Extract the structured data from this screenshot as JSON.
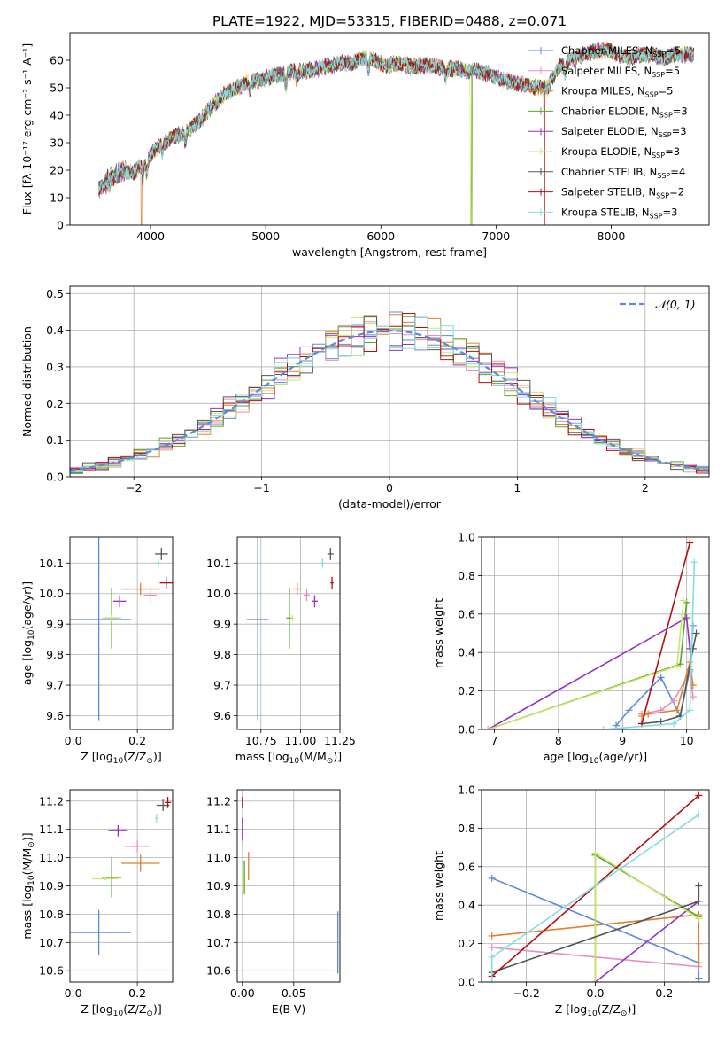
{
  "title": "PLATE=1922, MJD=53315, FIBERID=0488, z=0.071",
  "colors": {
    "chabrier_miles": "#5b8bd9",
    "salpeter_miles": "#e68fbf",
    "kroupa_miles": "#e0822c",
    "chabrier_elodie": "#58a52f",
    "salpeter_elodie": "#9b30c2",
    "kroupa_elodie": "#cde46e",
    "chabrier_stelib": "#555555",
    "salpeter_stelib": "#b21010",
    "kroupa_stelib": "#80dde0",
    "normal_curve": "#5b8bd9",
    "grid": "#b0b0b0"
  },
  "chart_data": [
    {
      "id": "spectrum",
      "type": "line",
      "xlabel": "wavelength [Angstrom, rest frame]",
      "ylabel": "Flux [fλ 10⁻¹⁷ erg cm⁻² s⁻¹ A⁻¹]",
      "xlim": [
        3300,
        8850
      ],
      "ylim": [
        0,
        70
      ],
      "xticks": [
        4000,
        5000,
        6000,
        7000,
        8000
      ],
      "yticks": [
        0,
        10,
        20,
        30,
        40,
        50,
        60
      ],
      "grid": false,
      "legend_position": "top-right",
      "continuum": [
        [
          3550,
          13
        ],
        [
          3650,
          17
        ],
        [
          3750,
          20
        ],
        [
          3850,
          19
        ],
        [
          3950,
          23
        ],
        [
          4050,
          28
        ],
        [
          4150,
          31
        ],
        [
          4250,
          33
        ],
        [
          4350,
          35
        ],
        [
          4450,
          39
        ],
        [
          4550,
          44
        ],
        [
          4650,
          48
        ],
        [
          4750,
          50
        ],
        [
          4850,
          52
        ],
        [
          4950,
          53
        ],
        [
          5050,
          54
        ],
        [
          5150,
          55
        ],
        [
          5250,
          56
        ],
        [
          5350,
          56
        ],
        [
          5450,
          57
        ],
        [
          5550,
          58
        ],
        [
          5650,
          59
        ],
        [
          5750,
          59
        ],
        [
          5850,
          61
        ],
        [
          5950,
          60
        ],
        [
          6050,
          58
        ],
        [
          6150,
          59
        ],
        [
          6250,
          58
        ],
        [
          6350,
          58
        ],
        [
          6450,
          58
        ],
        [
          6550,
          57
        ],
        [
          6650,
          57
        ],
        [
          6750,
          56
        ],
        [
          6850,
          56
        ],
        [
          6950,
          55
        ],
        [
          7050,
          53
        ],
        [
          7150,
          52
        ],
        [
          7250,
          51
        ],
        [
          7350,
          50
        ],
        [
          7450,
          50
        ],
        [
          7550,
          58
        ],
        [
          7650,
          60
        ],
        [
          7750,
          62
        ],
        [
          7850,
          63
        ],
        [
          7950,
          64
        ],
        [
          8050,
          62
        ],
        [
          8150,
          61
        ],
        [
          8250,
          62
        ],
        [
          8350,
          62
        ],
        [
          8450,
          61
        ],
        [
          8550,
          62
        ],
        [
          8650,
          62
        ],
        [
          8720,
          62
        ]
      ],
      "series": [
        {
          "name": "Chabrier MILES, N_SSP=5",
          "legend": [
            "Chabrier MILES, N",
            "SSP",
            "=5"
          ],
          "color_key": "chabrier_miles",
          "drop_at": null
        },
        {
          "name": "Salpeter MILES, N_SSP=5",
          "legend": [
            "Salpeter MILES, N",
            "SSP",
            "=5"
          ],
          "color_key": "salpeter_miles",
          "drop_at": null
        },
        {
          "name": "Kroupa MILES, N_SSP=5",
          "legend": [
            "Kroupa MILES, N",
            "SSP",
            "=5"
          ],
          "color_key": "kroupa_miles",
          "drop_at": 3920
        },
        {
          "name": "Chabrier ELODIE, N_SSP=3",
          "legend": [
            "Chabrier ELODIE, N",
            "SSP",
            "=3"
          ],
          "color_key": "chabrier_elodie",
          "drop_at": 6790
        },
        {
          "name": "Salpeter ELODIE, N_SSP=3",
          "legend": [
            "Salpeter ELODIE, N",
            "SSP",
            "=3"
          ],
          "color_key": "salpeter_elodie",
          "drop_at": null
        },
        {
          "name": "Kroupa ELODIE, N_SSP=3",
          "legend": [
            "Kroupa ELODIE, N",
            "SSP",
            "=3"
          ],
          "color_key": "kroupa_elodie",
          "drop_at": 6780
        },
        {
          "name": "Chabrier STELIB, N_SSP=4",
          "legend": [
            "Chabrier STELIB, N",
            "SSP",
            "=4"
          ],
          "color_key": "chabrier_stelib",
          "drop_at": null
        },
        {
          "name": "Salpeter STELIB, N_SSP=2",
          "legend": [
            "Salpeter STELIB, N",
            "SSP",
            "=2"
          ],
          "color_key": "salpeter_stelib",
          "drop_at": 7420
        },
        {
          "name": "Kroupa STELIB, N_SSP=3",
          "legend": [
            "Kroupa STELIB, N",
            "SSP",
            "=3"
          ],
          "color_key": "kroupa_stelib",
          "drop_at": null
        }
      ]
    },
    {
      "id": "residuals",
      "type": "histogram",
      "xlabel": "(data-model)/error",
      "ylabel": "Normed distribution",
      "xlim": [
        -2.5,
        2.5
      ],
      "ylim": [
        0,
        0.52
      ],
      "xticks": [
        -2,
        -1,
        0,
        1,
        2
      ],
      "yticks": [
        0.0,
        0.1,
        0.2,
        0.3,
        0.4,
        0.5
      ],
      "grid": true,
      "bin_width": 0.1,
      "legend": "𝒩(0, 1)",
      "legend_position": "top-right"
    },
    {
      "id": "age_vs_Z",
      "type": "errorbar",
      "xlabel": [
        "Z [log",
        "10",
        "(Z/Z",
        "⊙",
        ")]"
      ],
      "ylabel": [
        "age  [log",
        "10",
        "(age/yr)]"
      ],
      "xlim": [
        -0.01,
        0.31
      ],
      "ylim": [
        9.555,
        10.185
      ],
      "xticks": [
        0.0,
        0.2
      ],
      "yticks": [
        9.6,
        9.7,
        9.8,
        9.9,
        10.0,
        10.1
      ],
      "points": [
        {
          "color_key": "chabrier_miles",
          "x": 0.08,
          "y": 9.915,
          "xerr": 0.1,
          "yerr": 0.33
        },
        {
          "color_key": "kroupa_miles",
          "x": 0.21,
          "y": 10.015,
          "xerr": 0.06,
          "yerr": 0.02
        },
        {
          "color_key": "salpeter_miles",
          "x": 0.24,
          "y": 9.995,
          "xerr": 0.02,
          "yerr": 0.025
        },
        {
          "color_key": "chabrier_elodie",
          "x": 0.12,
          "y": 9.92,
          "xerr": 0.02,
          "yerr": 0.1
        },
        {
          "color_key": "salpeter_elodie",
          "x": 0.145,
          "y": 9.975,
          "xerr": 0.02,
          "yerr": 0.02
        },
        {
          "color_key": "kroupa_elodie",
          "x": 0.12,
          "y": 9.92,
          "xerr": 0.03,
          "yerr": 0.01
        },
        {
          "color_key": "chabrier_stelib",
          "x": 0.275,
          "y": 10.13,
          "xerr": 0.02,
          "yerr": 0.02
        },
        {
          "color_key": "salpeter_stelib",
          "x": 0.29,
          "y": 10.035,
          "xerr": 0.02,
          "yerr": 0.02
        },
        {
          "color_key": "kroupa_stelib",
          "x": 0.265,
          "y": 10.1,
          "xerr": 0.01,
          "yerr": 0.015
        }
      ]
    },
    {
      "id": "age_vs_mass",
      "type": "errorbar",
      "xlabel": [
        "mass [log",
        "10",
        "(M/M",
        "⊙",
        ")]"
      ],
      "xlim": [
        10.6,
        11.25
      ],
      "ylim": [
        9.555,
        10.185
      ],
      "xticks": [
        10.75,
        11.0,
        11.25
      ],
      "yticks": [
        9.6,
        9.7,
        9.8,
        9.9,
        10.0,
        10.1
      ],
      "points": [
        {
          "color_key": "chabrier_miles",
          "x": 10.73,
          "y": 9.915,
          "xerr": 0.07,
          "yerr": 0.33
        },
        {
          "color_key": "kroupa_miles",
          "x": 10.98,
          "y": 10.015,
          "xerr": 0.03,
          "yerr": 0.02
        },
        {
          "color_key": "salpeter_miles",
          "x": 11.04,
          "y": 9.995,
          "xerr": 0.02,
          "yerr": 0.02
        },
        {
          "color_key": "chabrier_elodie",
          "x": 10.93,
          "y": 9.92,
          "xerr": 0.02,
          "yerr": 0.1
        },
        {
          "color_key": "salpeter_elodie",
          "x": 11.09,
          "y": 9.975,
          "xerr": 0.02,
          "yerr": 0.02
        },
        {
          "color_key": "kroupa_elodie",
          "x": 10.95,
          "y": 9.92,
          "xerr": 0.01,
          "yerr": 0.01
        },
        {
          "color_key": "chabrier_stelib",
          "x": 11.19,
          "y": 10.13,
          "xerr": 0.02,
          "yerr": 0.02
        },
        {
          "color_key": "salpeter_stelib",
          "x": 11.2,
          "y": 10.035,
          "xerr": 0.01,
          "yerr": 0.02
        },
        {
          "color_key": "kroupa_stelib",
          "x": 11.14,
          "y": 10.1,
          "xerr": 0.01,
          "yerr": 0.015
        }
      ]
    },
    {
      "id": "weight_vs_age",
      "type": "line",
      "xlabel": [
        "age  [log",
        "10",
        "(age/yr)]"
      ],
      "ylabel": "mass weight",
      "xlim": [
        6.8,
        10.35
      ],
      "ylim": [
        0,
        1.0
      ],
      "xticks": [
        7,
        8,
        9,
        10
      ],
      "yticks": [
        0.0,
        0.2,
        0.4,
        0.6,
        0.8,
        1.0
      ],
      "grid": true,
      "series": [
        {
          "color_key": "chabrier_miles",
          "x": [
            8.9,
            9.1,
            9.6,
            9.9,
            10.05,
            10.1
          ],
          "y": [
            0.02,
            0.1,
            0.27,
            0.07,
            0.31,
            0.54
          ]
        },
        {
          "color_key": "salpeter_miles",
          "x": [
            9.3,
            9.6,
            9.8,
            10.05,
            10.1
          ],
          "y": [
            0.08,
            0.1,
            0.15,
            0.3,
            0.17
          ]
        },
        {
          "color_key": "kroupa_miles",
          "x": [
            9.3,
            9.4,
            9.85,
            10.05,
            10.1
          ],
          "y": [
            0.07,
            0.08,
            0.1,
            0.35,
            0.23
          ]
        },
        {
          "color_key": "chabrier_elodie",
          "x": [
            6.9,
            9.9,
            10.0
          ],
          "y": [
            0.0,
            0.34,
            0.66
          ]
        },
        {
          "color_key": "salpeter_elodie",
          "x": [
            6.9,
            10.0,
            10.05
          ],
          "y": [
            0.0,
            0.58,
            0.42
          ]
        },
        {
          "color_key": "kroupa_elodie",
          "x": [
            6.9,
            9.85,
            9.95
          ],
          "y": [
            0.0,
            0.33,
            0.67
          ]
        },
        {
          "color_key": "chabrier_stelib",
          "x": [
            9.3,
            9.6,
            9.9,
            10.1,
            10.15
          ],
          "y": [
            0.03,
            0.04,
            0.07,
            0.42,
            0.5
          ]
        },
        {
          "color_key": "salpeter_stelib",
          "x": [
            9.3,
            10.05
          ],
          "y": [
            0.03,
            0.97
          ]
        },
        {
          "color_key": "kroupa_stelib",
          "x": [
            8.7,
            9.8,
            10.05,
            10.12
          ],
          "y": [
            0.0,
            0.03,
            0.1,
            0.87
          ]
        }
      ]
    },
    {
      "id": "mass_vs_Z",
      "type": "errorbar",
      "xlabel": [
        "Z [log",
        "10",
        "(Z/Z",
        "⊙",
        ")]"
      ],
      "ylabel": [
        "mass [log",
        "10",
        "(M/M",
        "⊙",
        ")]"
      ],
      "xlim": [
        -0.01,
        0.31
      ],
      "ylim": [
        10.56,
        11.24
      ],
      "xticks": [
        0.0,
        0.2
      ],
      "yticks": [
        10.6,
        10.7,
        10.8,
        10.9,
        11.0,
        11.1,
        11.2
      ],
      "points": [
        {
          "color_key": "chabrier_miles",
          "x": 0.08,
          "y": 10.735,
          "xerr": 0.1,
          "yerr": 0.08
        },
        {
          "color_key": "kroupa_miles",
          "x": 0.21,
          "y": 10.98,
          "xerr": 0.06,
          "yerr": 0.03
        },
        {
          "color_key": "salpeter_miles",
          "x": 0.2,
          "y": 11.04,
          "xerr": 0.04,
          "yerr": 0.02
        },
        {
          "color_key": "chabrier_elodie",
          "x": 0.12,
          "y": 10.93,
          "xerr": 0.03,
          "yerr": 0.07
        },
        {
          "color_key": "salpeter_elodie",
          "x": 0.14,
          "y": 11.095,
          "xerr": 0.03,
          "yerr": 0.02
        },
        {
          "color_key": "kroupa_elodie",
          "x": 0.1,
          "y": 10.925,
          "xerr": 0.04,
          "yerr": 0.005
        },
        {
          "color_key": "chabrier_stelib",
          "x": 0.28,
          "y": 11.185,
          "xerr": 0.02,
          "yerr": 0.02
        },
        {
          "color_key": "salpeter_stelib",
          "x": 0.295,
          "y": 11.195,
          "xerr": 0.01,
          "yerr": 0.02
        },
        {
          "color_key": "kroupa_stelib",
          "x": 0.26,
          "y": 11.14,
          "xerr": 0.005,
          "yerr": 0.015
        }
      ]
    },
    {
      "id": "mass_vs_ebv",
      "type": "errorbar",
      "xlabel": "E(B-V)",
      "xlim": [
        -0.005,
        0.095
      ],
      "ylim": [
        10.56,
        11.24
      ],
      "xticks": [
        0.0,
        0.05
      ],
      "yticks": [
        10.6,
        10.7,
        10.8,
        10.9,
        11.0,
        11.1,
        11.2
      ],
      "points": [
        {
          "color_key": "chabrier_miles",
          "x": 0.093,
          "y": 10.7,
          "xerr": 0.0,
          "yerr": 0.11
        },
        {
          "color_key": "kroupa_miles",
          "x": 0.006,
          "y": 10.97,
          "xerr": 0.0,
          "yerr": 0.05
        },
        {
          "color_key": "chabrier_elodie",
          "x": 0.002,
          "y": 10.93,
          "xerr": 0.0,
          "yerr": 0.06
        },
        {
          "color_key": "salpeter_elodie",
          "x": 0.0,
          "y": 11.1,
          "xerr": 0.0,
          "yerr": 0.04
        },
        {
          "color_key": "kroupa_elodie",
          "x": 0.0,
          "y": 10.92,
          "xerr": 0.0,
          "yerr": 0.04
        },
        {
          "color_key": "salpeter_stelib",
          "x": 0.0,
          "y": 11.195,
          "xerr": 0.0,
          "yerr": 0.02
        }
      ]
    },
    {
      "id": "weight_vs_Z",
      "type": "line",
      "xlabel": [
        "Z [log",
        "10",
        "(Z/Z",
        "⊙",
        ")]"
      ],
      "ylabel": "mass weight",
      "xlim": [
        -0.33,
        0.33
      ],
      "ylim": [
        0,
        1.0
      ],
      "xticks": [
        -0.2,
        0.0,
        0.2
      ],
      "yticks": [
        0.0,
        0.2,
        0.4,
        0.6,
        0.8,
        1.0
      ],
      "grid": true,
      "series": [
        {
          "color_key": "chabrier_miles",
          "x": [
            -0.3,
            0.3,
            0.3
          ],
          "y": [
            0.54,
            0.1,
            0.02
          ]
        },
        {
          "color_key": "salpeter_miles",
          "x": [
            -0.3,
            0.3,
            0.3
          ],
          "y": [
            0.18,
            0.08,
            0.2
          ]
        },
        {
          "color_key": "kroupa_miles",
          "x": [
            -0.3,
            0.3,
            0.3
          ],
          "y": [
            0.24,
            0.35,
            0.1
          ]
        },
        {
          "color_key": "chabrier_elodie",
          "x": [
            0.0,
            0.0,
            0.3
          ],
          "y": [
            0.0,
            0.66,
            0.34
          ]
        },
        {
          "color_key": "salpeter_elodie",
          "x": [
            0.0,
            0.3
          ],
          "y": [
            0.0,
            0.42
          ]
        },
        {
          "color_key": "kroupa_elodie",
          "x": [
            0.0,
            0.0,
            0.3
          ],
          "y": [
            0.0,
            0.67,
            0.33
          ]
        },
        {
          "color_key": "chabrier_stelib",
          "x": [
            -0.3,
            0.3,
            0.3
          ],
          "y": [
            0.05,
            0.42,
            0.5
          ]
        },
        {
          "color_key": "salpeter_stelib",
          "x": [
            -0.3,
            0.3
          ],
          "y": [
            0.03,
            0.97
          ]
        },
        {
          "color_key": "kroupa_stelib",
          "x": [
            -0.3,
            -0.3,
            0.3
          ],
          "y": [
            0.0,
            0.13,
            0.87
          ]
        }
      ]
    }
  ]
}
